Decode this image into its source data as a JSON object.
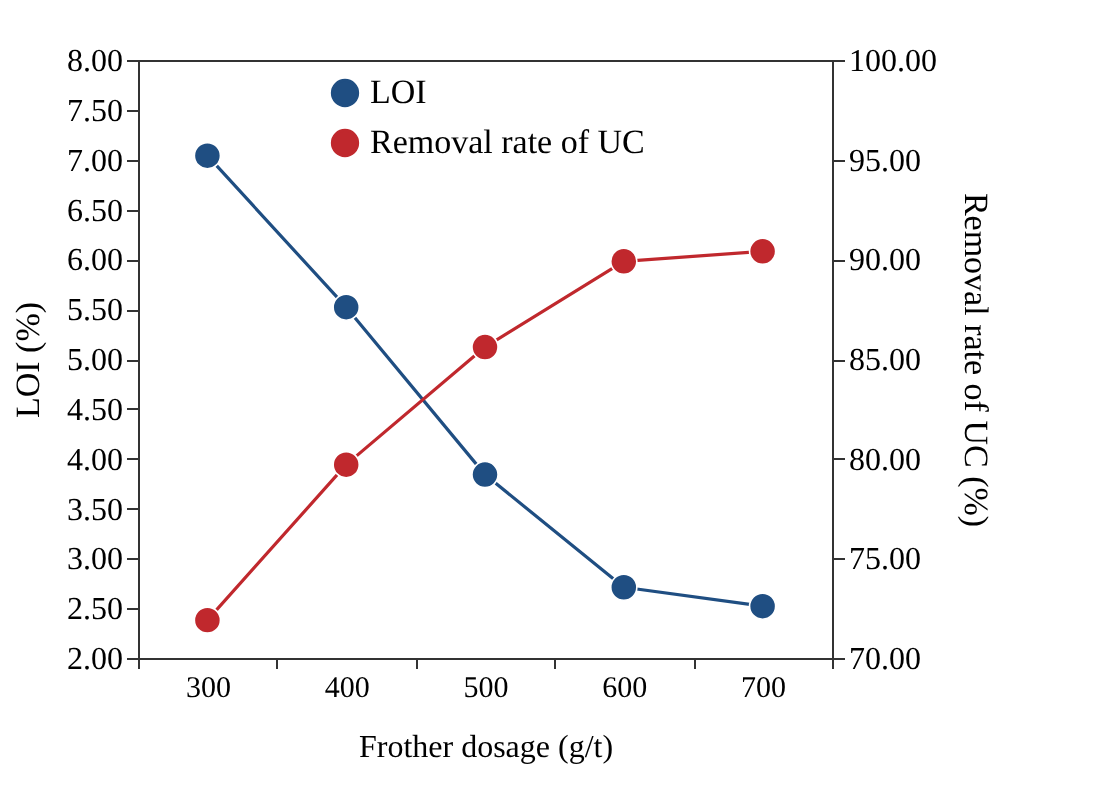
{
  "chart_data": {
    "type": "line",
    "xlabel": "Frother dosage (g/t)",
    "ylabel": "LOI (%)",
    "y2label": "Removal rate of UC (%)",
    "categories": [
      "300",
      "400",
      "500",
      "600",
      "700"
    ],
    "series": [
      {
        "name": "LOI",
        "color": "#1f4e82",
        "values": [
          7.04,
          5.52,
          3.84,
          2.71,
          2.52
        ]
      },
      {
        "name": "Removal rate of UC",
        "color": "#c0282d",
        "axis": "y2",
        "values": [
          71.9,
          79.7,
          85.6,
          89.9,
          90.4
        ]
      }
    ],
    "ylim": [
      2.0,
      8.0
    ],
    "yticks": [
      {
        "value": 2,
        "label": "2.00"
      },
      {
        "value": 2.5,
        "label": "2.50"
      },
      {
        "value": 3,
        "label": "3.00"
      },
      {
        "value": 3.5,
        "label": "3.50"
      },
      {
        "value": 4,
        "label": "4.00"
      },
      {
        "value": 4.5,
        "label": "4.50"
      },
      {
        "value": 5,
        "label": "5.00"
      },
      {
        "value": 5.5,
        "label": "5.50"
      },
      {
        "value": 6,
        "label": "6.00"
      },
      {
        "value": 6.5,
        "label": "6.50"
      },
      {
        "value": 7,
        "label": "7.00"
      },
      {
        "value": 7.5,
        "label": "7.50"
      },
      {
        "value": 8,
        "label": "8.00"
      }
    ],
    "y2lim": [
      70,
      100
    ],
    "y2ticks": [
      {
        "value": 70,
        "label": "70.00"
      },
      {
        "value": 75,
        "label": "75.00"
      },
      {
        "value": 80,
        "label": "80.00"
      },
      {
        "value": 85,
        "label": "85.00"
      },
      {
        "value": 90,
        "label": "90.00"
      },
      {
        "value": 95,
        "label": "95.00"
      },
      {
        "value": 100,
        "label": "100.00"
      }
    ],
    "grid": false,
    "legend": "top",
    "marker": "circle",
    "line_style": "solid"
  }
}
